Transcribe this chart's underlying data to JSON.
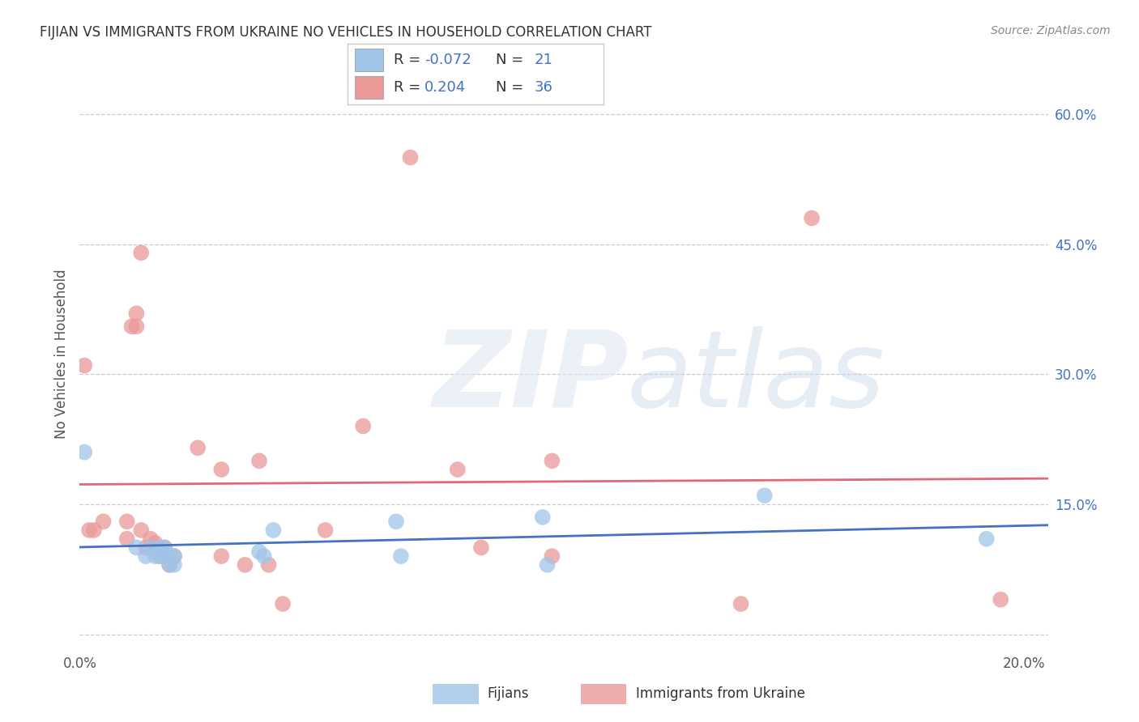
{
  "title": "FIJIAN VS IMMIGRANTS FROM UKRAINE NO VEHICLES IN HOUSEHOLD CORRELATION CHART",
  "source": "Source: ZipAtlas.com",
  "ylabel": "No Vehicles in Household",
  "xlim": [
    0.0,
    0.205
  ],
  "ylim": [
    -0.018,
    0.665
  ],
  "x_ticks": [
    0.0,
    0.05,
    0.1,
    0.15,
    0.2
  ],
  "x_tick_labels": [
    "0.0%",
    "",
    "",
    "",
    "20.0%"
  ],
  "y_ticks_right": [
    0.0,
    0.15,
    0.3,
    0.45,
    0.6
  ],
  "y_tick_labels_right": [
    "",
    "15.0%",
    "30.0%",
    "45.0%",
    "60.0%"
  ],
  "fijians_x": [
    0.001,
    0.012,
    0.014,
    0.015,
    0.016,
    0.017,
    0.017,
    0.018,
    0.019,
    0.019,
    0.02,
    0.02,
    0.038,
    0.039,
    0.041,
    0.067,
    0.068,
    0.098,
    0.099,
    0.145,
    0.192
  ],
  "fijians_y": [
    0.21,
    0.1,
    0.09,
    0.1,
    0.09,
    0.09,
    0.1,
    0.1,
    0.08,
    0.09,
    0.08,
    0.09,
    0.095,
    0.09,
    0.12,
    0.13,
    0.09,
    0.135,
    0.08,
    0.16,
    0.11
  ],
  "ukraine_x": [
    0.001,
    0.002,
    0.003,
    0.005,
    0.01,
    0.01,
    0.011,
    0.012,
    0.012,
    0.013,
    0.013,
    0.014,
    0.015,
    0.016,
    0.016,
    0.017,
    0.018,
    0.019,
    0.02,
    0.025,
    0.03,
    0.03,
    0.035,
    0.038,
    0.04,
    0.043,
    0.052,
    0.06,
    0.07,
    0.08,
    0.085,
    0.1,
    0.1,
    0.14,
    0.155,
    0.195
  ],
  "ukraine_y": [
    0.31,
    0.12,
    0.12,
    0.13,
    0.13,
    0.11,
    0.355,
    0.355,
    0.37,
    0.44,
    0.12,
    0.1,
    0.11,
    0.1,
    0.105,
    0.09,
    0.1,
    0.08,
    0.09,
    0.215,
    0.19,
    0.09,
    0.08,
    0.2,
    0.08,
    0.035,
    0.12,
    0.24,
    0.55,
    0.19,
    0.1,
    0.2,
    0.09,
    0.035,
    0.48,
    0.04
  ],
  "fijian_color": "#9fc5e8",
  "ukraine_color": "#ea9999",
  "fijian_line_color": "#4472c4",
  "ukraine_line_color": "#e06878",
  "background_color": "#ffffff",
  "grid_color": "#cccccc",
  "legend_text_color": "#4472c4",
  "legend_label_color": "#333333"
}
